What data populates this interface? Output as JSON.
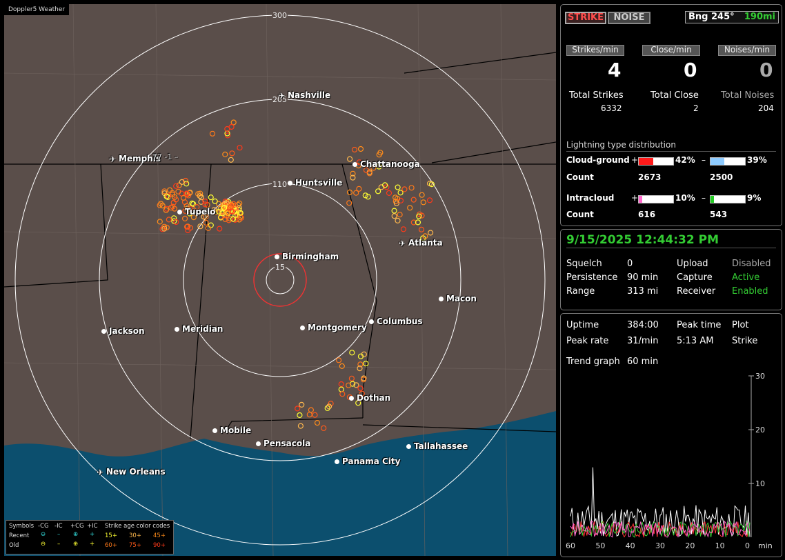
{
  "app_tag": "Doppler5 Weather",
  "map": {
    "ring_labels": [
      "300",
      "205",
      "110",
      "15"
    ],
    "cities": [
      {
        "name": "Nashville",
        "air": true
      },
      {
        "name": "Memphis",
        "air": true
      },
      {
        "name": "Huntsville",
        "air": false
      },
      {
        "name": "Chattanooga",
        "air": false
      },
      {
        "name": "Tupelo",
        "air": false
      },
      {
        "name": "Birmingham",
        "air": false
      },
      {
        "name": "Atlanta",
        "air": true
      },
      {
        "name": "Macon",
        "air": false
      },
      {
        "name": "Jackson",
        "air": false
      },
      {
        "name": "Meridian",
        "air": false
      },
      {
        "name": "Montgomery",
        "air": false
      },
      {
        "name": "Columbus",
        "air": false
      },
      {
        "name": "Dothan",
        "air": false
      },
      {
        "name": "Mobile",
        "air": false
      },
      {
        "name": "Pensacola",
        "air": false
      },
      {
        "name": "Tallahassee",
        "air": false
      },
      {
        "name": "Panama City",
        "air": false
      },
      {
        "name": "New Orleans",
        "air": true
      }
    ],
    "memphis_extra": "77 -1 –"
  },
  "legend": {
    "symbols": "Symbols",
    "cols": [
      "-CG",
      "-IC",
      "+CG",
      "+IC"
    ],
    "age_title": "Strike age color codes",
    "recent": "Recent",
    "old": "Old",
    "recent_ages": [
      "15+",
      "30+",
      "45+"
    ],
    "old_ages": [
      "60+",
      "75+",
      "90+"
    ],
    "age_colors": [
      "#ffff33",
      "#ffb84d",
      "#ff8c1a",
      "#ff7a1a",
      "#ff5a1a",
      "#ff3a1a"
    ]
  },
  "top": {
    "strike_btn": "STRIKE",
    "noise_btn": "NOISE",
    "bearing": "Bng 245°",
    "distance": "190mi"
  },
  "rates": [
    {
      "label": "Strikes/min",
      "value": "4",
      "total_label": "Total Strikes",
      "total": "6332"
    },
    {
      "label": "Close/min",
      "value": "0",
      "total_label": "Total Close",
      "total": "2"
    },
    {
      "label": "Noises/min",
      "value": "0",
      "total_label": "Total Noises",
      "total": "204"
    }
  ],
  "distribution": {
    "title": "Lightning type distribution",
    "cg_label": "Cloud-ground",
    "cg_pos_pct": 42,
    "cg_pos_text": "42%",
    "cg_neg_pct": 39,
    "cg_neg_text": "39%",
    "count_label": "Count",
    "cg_pos_count": "2673",
    "cg_neg_count": "2500",
    "ic_label": "Intracloud",
    "ic_pos_pct": 10,
    "ic_pos_text": "10%",
    "ic_neg_pct": 9,
    "ic_neg_text": "9%",
    "ic_pos_count": "616",
    "ic_neg_count": "543",
    "plus": "+",
    "minus": "–",
    "colors": {
      "cg_pos": "#ff1a1a",
      "cg_neg": "#8ecbff",
      "ic_pos": "#ff66cc",
      "ic_neg": "#22cc22"
    }
  },
  "status": {
    "datetime": "9/15/2025 12:44:32 PM",
    "rows": [
      {
        "k": "Squelch",
        "v": "0",
        "k2": "Upload",
        "v2": "Disabled"
      },
      {
        "k": "Persistence",
        "v": "90 min",
        "k2": "Capture",
        "v2": "Active"
      },
      {
        "k": "Range",
        "v": "313 mi",
        "k2": "Receiver",
        "v2": "Enabled"
      }
    ]
  },
  "stats": {
    "uptime_label": "Uptime",
    "uptime": "384:00",
    "peak_time_label": "Peak time",
    "plot_label": "Plot",
    "peak_rate_label": "Peak rate",
    "peak_rate": "31/min",
    "peak_time": "5:13 AM",
    "plot": "Strike",
    "trend_label": "Trend graph",
    "trend": "60 min"
  },
  "chart_data": {
    "type": "line",
    "x": [
      60,
      50,
      40,
      30,
      20,
      10,
      0
    ],
    "xlabel": "min",
    "ylim": [
      0,
      30
    ],
    "yticks": [
      10,
      20,
      30
    ],
    "series": [],
    "peak": 13
  }
}
